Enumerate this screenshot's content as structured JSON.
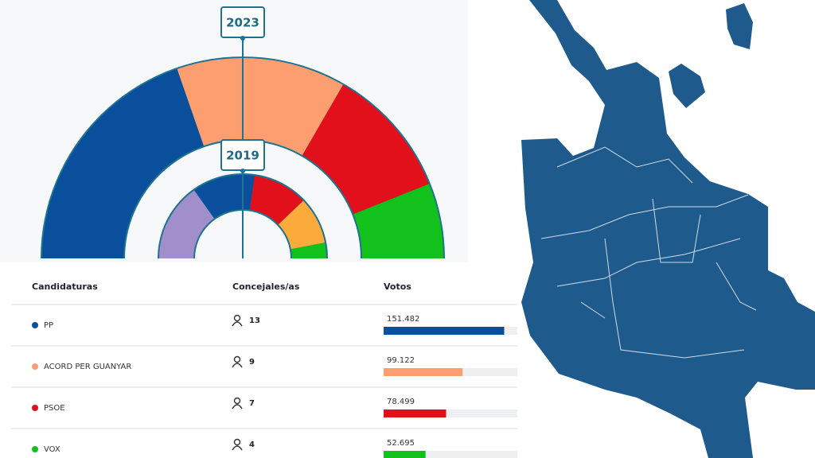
{
  "chart_data": [
    {
      "type": "hemicycle",
      "title": "2023",
      "values": [
        13,
        9,
        7,
        4
      ],
      "colors": [
        "#0a4f9c",
        "#fd9e70",
        "#e2101b",
        "#12c11b"
      ]
    },
    {
      "type": "hemicycle",
      "title": "2019",
      "values": [
        10,
        8,
        7,
        6,
        2
      ],
      "colors": [
        "#a18fcb",
        "#0a4f9c",
        "#e2101b",
        "#fbab3b",
        "#12c11b"
      ]
    }
  ],
  "table": {
    "columns": [
      "Candidaturas",
      "Concejales/as",
      "Votos"
    ],
    "xlim": [
      0,
      168000
    ],
    "rows": [
      {
        "name": "PP",
        "color": "#0a4f9c",
        "seats": 13,
        "votes": {
          "value": 151482,
          "label": "151.482"
        }
      },
      {
        "name": "ACORD PER GUANYAR",
        "color": "#fd9e70",
        "seats": 9,
        "votes": {
          "value": 99122,
          "label": "99.122"
        }
      },
      {
        "name": "PSOE",
        "color": "#e2101b",
        "seats": 7,
        "votes": {
          "value": 78499,
          "label": "78.499"
        }
      },
      {
        "name": "VOX",
        "color": "#12c11b",
        "seats": 4,
        "votes": {
          "value": 52695,
          "label": "52.695"
        }
      }
    ]
  }
}
